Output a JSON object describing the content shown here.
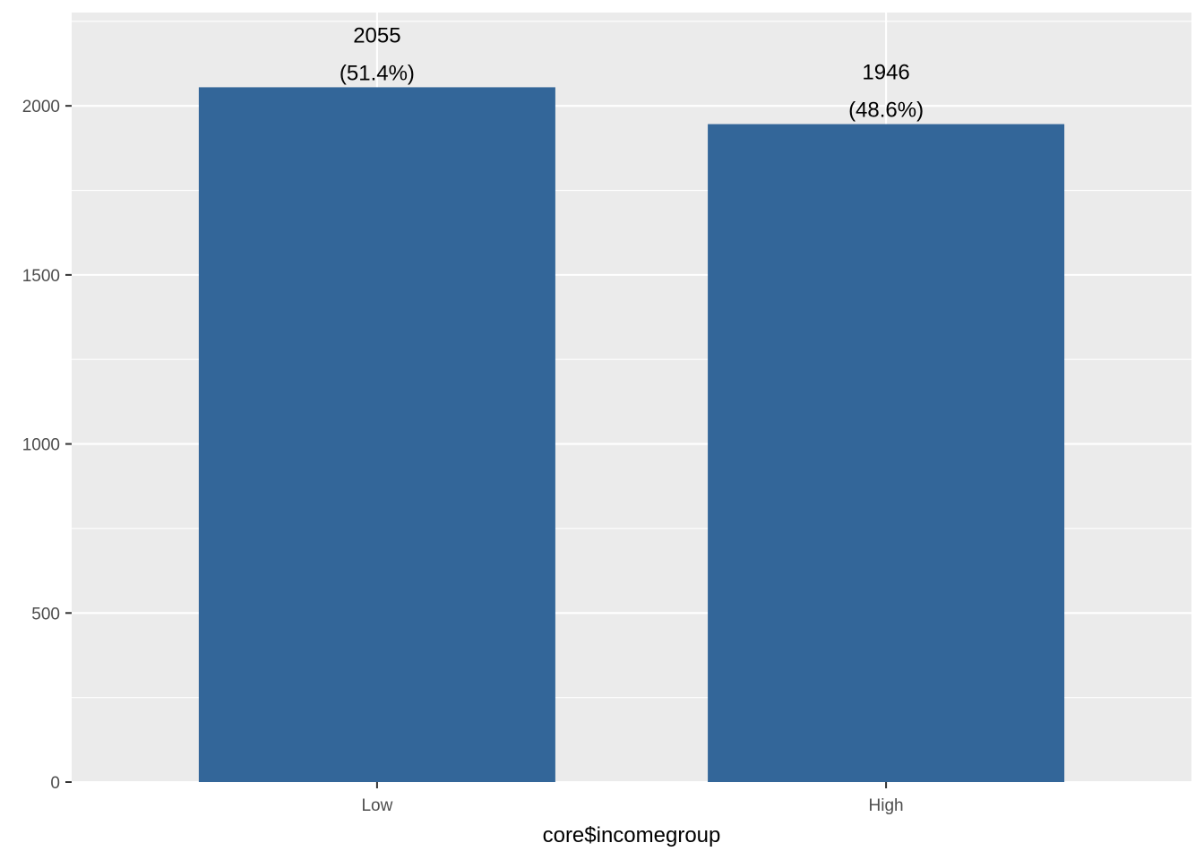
{
  "chart_data": {
    "type": "bar",
    "categories": [
      "Low",
      "High"
    ],
    "values": [
      2055,
      1946
    ],
    "data_labels": [
      [
        "2055",
        "(51.4%)"
      ],
      [
        "1946",
        "(48.6%)"
      ]
    ],
    "title": "",
    "xlabel": "core$incomegroup",
    "ylabel": "",
    "ylim": [
      0,
      2276
    ],
    "yticks": [
      0,
      500,
      1000,
      1500,
      2000
    ],
    "ytick_labels": [
      "0",
      "500",
      "1000",
      "1500",
      "2000"
    ],
    "grid": true,
    "legend": "none",
    "colors": {
      "bar": "#336699",
      "panel": "#ebebeb",
      "grid": "#ffffff",
      "tick_text": "#4d4d4d",
      "text": "#000000"
    }
  }
}
